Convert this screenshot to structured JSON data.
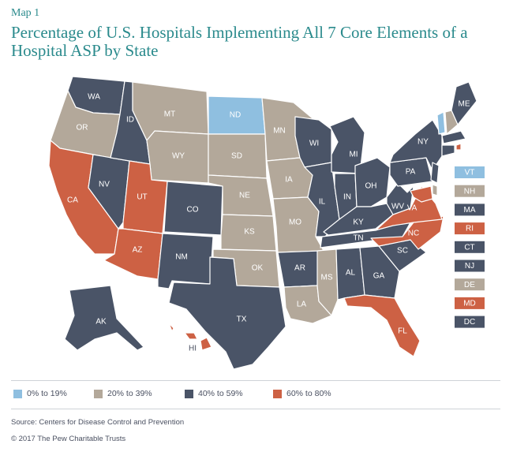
{
  "header": {
    "map_label": "Map 1",
    "title": "Percentage of U.S. Hospitals Implementing All 7 Core Elements of a Hospital ASP by State"
  },
  "colors": {
    "c0": "#8fbfe0",
    "c20": "#b3a89a",
    "c40": "#4a5467",
    "c60": "#cd6144",
    "title": "#2a8a8c"
  },
  "legend": [
    {
      "label": "0% to 19%",
      "color": "#8fbfe0"
    },
    {
      "label": "20% to 39%",
      "color": "#b3a89a"
    },
    {
      "label": "40% to 59%",
      "color": "#4a5467"
    },
    {
      "label": "60% to 80%",
      "color": "#cd6144"
    }
  ],
  "states": {
    "WA": "40% to 59%",
    "OR": "20% to 39%",
    "CA": "60% to 80%",
    "NV": "40% to 59%",
    "ID": "40% to 59%",
    "MT": "20% to 39%",
    "WY": "20% to 39%",
    "UT": "60% to 80%",
    "AZ": "60% to 80%",
    "CO": "40% to 59%",
    "NM": "40% to 59%",
    "ND": "0% to 19%",
    "SD": "20% to 39%",
    "NE": "20% to 39%",
    "KS": "20% to 39%",
    "OK": "20% to 39%",
    "TX": "40% to 59%",
    "MN": "20% to 39%",
    "IA": "20% to 39%",
    "MO": "20% to 39%",
    "AR": "40% to 59%",
    "LA": "20% to 39%",
    "WI": "40% to 59%",
    "IL": "40% to 59%",
    "MI": "40% to 59%",
    "IN": "40% to 59%",
    "OH": "40% to 59%",
    "KY": "40% to 59%",
    "TN": "40% to 59%",
    "MS": "20% to 39%",
    "AL": "40% to 59%",
    "GA": "40% to 59%",
    "FL": "60% to 80%",
    "SC": "40% to 59%",
    "NC": "60% to 80%",
    "VA": "60% to 80%",
    "WV": "40% to 59%",
    "PA": "40% to 59%",
    "NY": "40% to 59%",
    "ME": "40% to 59%",
    "AK": "40% to 59%",
    "HI": "60% to 80%",
    "VT": "0% to 19%",
    "NH": "20% to 39%",
    "MA": "40% to 59%",
    "RI": "60% to 80%",
    "CT": "40% to 59%",
    "NJ": "40% to 59%",
    "DE": "20% to 39%",
    "MD": "60% to 80%",
    "DC": "40% to 59%"
  },
  "small_states": [
    "VT",
    "NH",
    "MA",
    "RI",
    "CT",
    "NJ",
    "DE",
    "MD",
    "DC"
  ],
  "footer": {
    "source": "Source: Centers for Disease Control and Prevention",
    "copyright": "© 2017 The Pew Charitable Trusts"
  }
}
